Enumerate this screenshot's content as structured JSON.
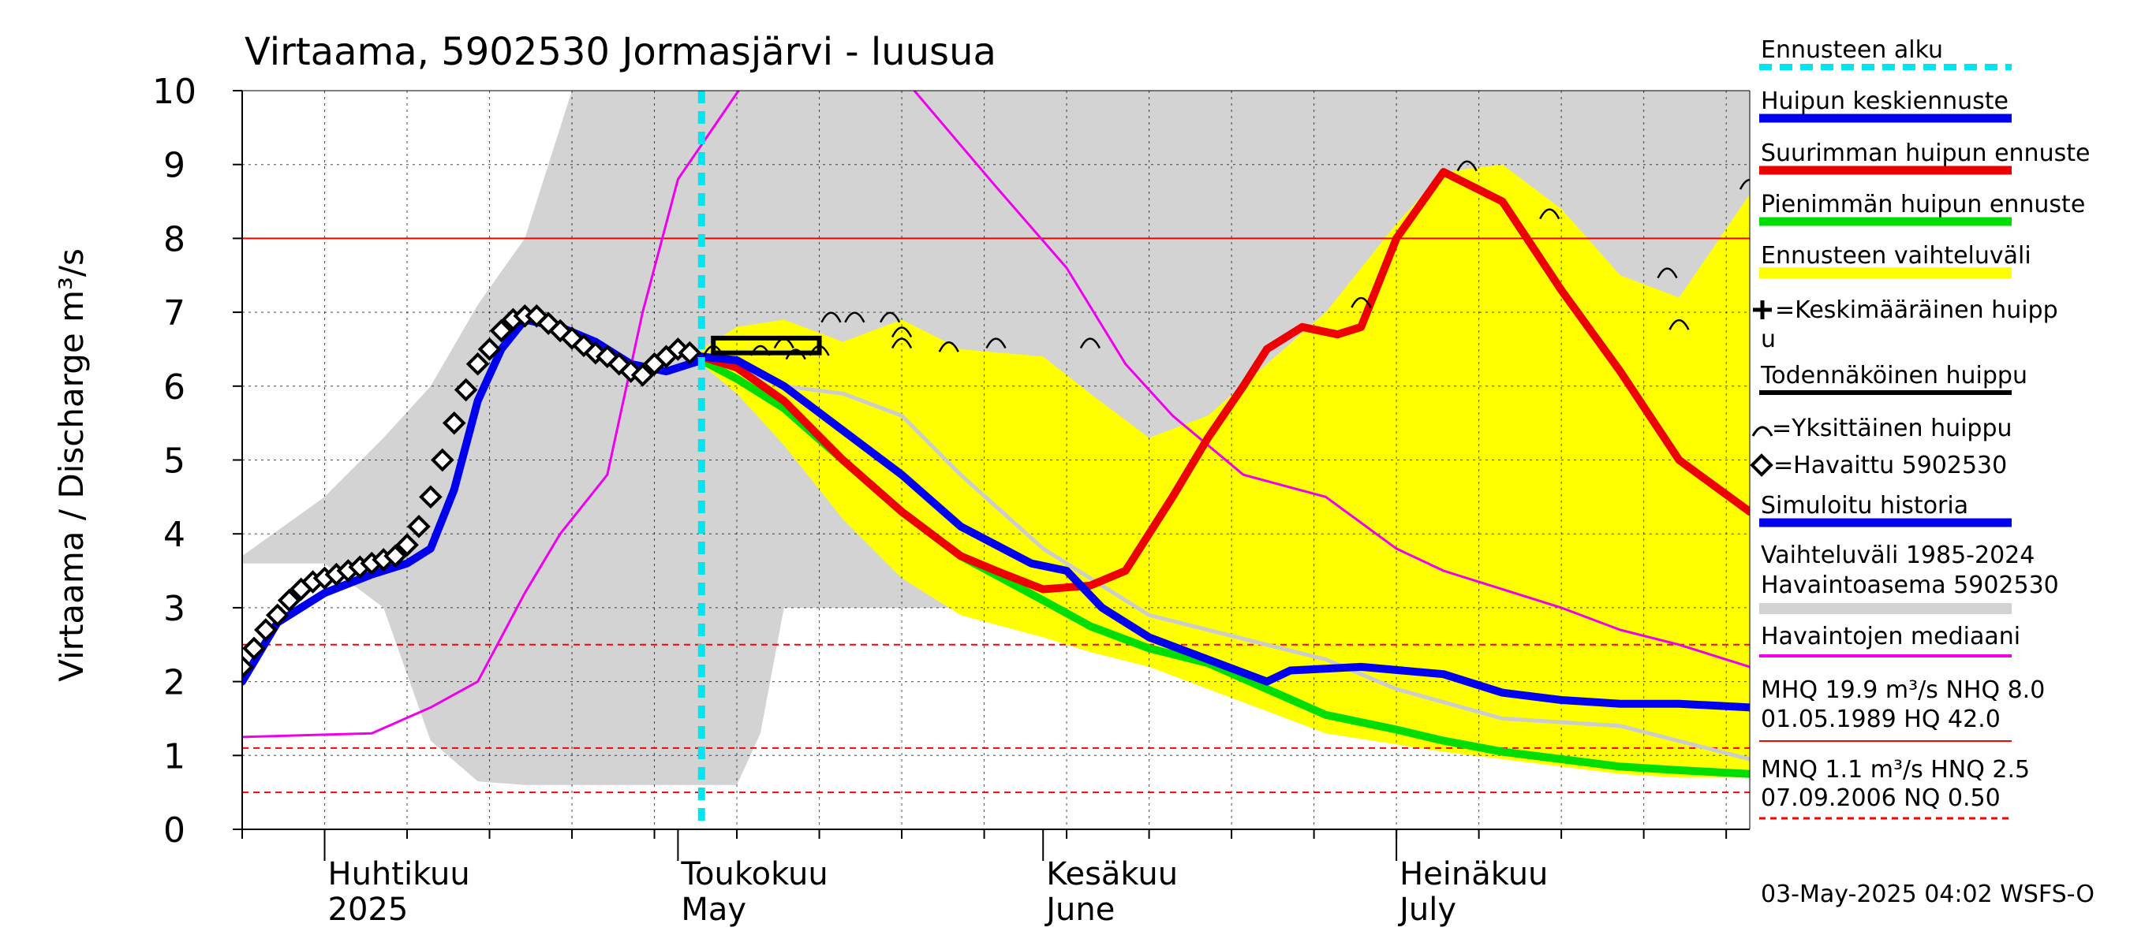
{
  "chart_data": {
    "type": "line",
    "title": "Virtaama, 5902530 Jormasjärvi - luusua",
    "ylabel": "Virtaama / Discharge    m³/s",
    "ylim": [
      0,
      10
    ],
    "yticks": [
      0,
      1,
      2,
      3,
      4,
      5,
      6,
      7,
      8,
      9,
      10
    ],
    "xlim": [
      "2025-03-25",
      "2025-07-31"
    ],
    "x_month_labels": [
      {
        "date": "2025-04-01",
        "fi": "Huhtikuu",
        "en": "2025"
      },
      {
        "date": "2025-05-01",
        "fi": "Toukokuu",
        "en": "May"
      },
      {
        "date": "2025-06-01",
        "fi": "Kesäkuu",
        "en": "June"
      },
      {
        "date": "2025-07-01",
        "fi": "Heinäkuu",
        "en": "July"
      }
    ],
    "grid": true,
    "forecast_start": "2025-05-03",
    "reference_lines": [
      {
        "name": "MHQ/NHQ",
        "value": 8.0,
        "color": "#ff0000",
        "style": "solid"
      },
      {
        "name": "HNQ",
        "value": 2.5,
        "color": "#ff0000",
        "style": "dashed"
      },
      {
        "name": "MNQ",
        "value": 1.1,
        "color": "#ff0000",
        "style": "dashed"
      },
      {
        "name": "NQ",
        "value": 0.5,
        "color": "#ff0000",
        "style": "dashed"
      }
    ],
    "hist_range": {
      "x": [
        "2025-03-25",
        "2025-04-01",
        "2025-04-06",
        "2025-04-10",
        "2025-04-14",
        "2025-04-18",
        "2025-04-22",
        "2025-04-25",
        "2025-04-27",
        "2025-05-01",
        "2025-05-03",
        "2025-05-06",
        "2025-05-08",
        "2025-05-10",
        "2025-05-15",
        "2025-05-20",
        "2025-05-25",
        "2025-06-01",
        "2025-06-10",
        "2025-06-15",
        "2025-06-20",
        "2025-06-25",
        "2025-07-01",
        "2025-07-05",
        "2025-07-10",
        "2025-07-15",
        "2025-07-20",
        "2025-07-25",
        "2025-07-31"
      ],
      "upper": [
        3.7,
        4.5,
        5.3,
        6.0,
        7.1,
        8.0,
        10,
        10,
        10,
        10,
        10,
        10,
        10,
        10,
        10,
        10,
        10,
        10,
        10,
        10,
        10,
        10,
        10,
        10,
        10,
        10,
        10,
        10,
        10
      ],
      "lower": [
        3.6,
        3.6,
        3.0,
        1.2,
        0.65,
        0.6,
        0.6,
        0.6,
        0.6,
        0.6,
        0.6,
        0.6,
        1.3,
        3.0,
        3.0,
        3.0,
        3.0,
        3.0,
        3.0,
        3.0,
        3.0,
        3.0,
        3.0,
        3.0,
        3.0,
        3.0,
        3.0,
        3.0,
        3.0
      ]
    },
    "forecast_range": {
      "x": [
        "2025-05-03",
        "2025-05-06",
        "2025-05-10",
        "2025-05-15",
        "2025-05-20",
        "2025-05-25",
        "2025-06-01",
        "2025-06-05",
        "2025-06-10",
        "2025-06-15",
        "2025-06-20",
        "2025-06-25",
        "2025-07-01",
        "2025-07-05",
        "2025-07-10",
        "2025-07-15",
        "2025-07-20",
        "2025-07-25",
        "2025-07-31"
      ],
      "upper": [
        6.5,
        6.8,
        6.9,
        6.6,
        6.9,
        6.5,
        6.4,
        5.9,
        5.3,
        5.6,
        6.3,
        7.0,
        8.2,
        8.9,
        9.0,
        8.4,
        7.5,
        7.2,
        8.6
      ],
      "lower": [
        6.3,
        5.9,
        5.2,
        4.2,
        3.4,
        2.9,
        2.6,
        2.4,
        2.2,
        1.9,
        1.6,
        1.3,
        1.15,
        1.05,
        0.95,
        0.85,
        0.75,
        0.7,
        0.7
      ]
    },
    "series": [
      {
        "name": "Huipun keskiennuste",
        "color": "#0000ee",
        "x": [
          "2025-05-03",
          "2025-05-06",
          "2025-05-10",
          "2025-05-15",
          "2025-05-20",
          "2025-05-25",
          "2025-05-31",
          "2025-06-03",
          "2025-06-06",
          "2025-06-10",
          "2025-06-15",
          "2025-06-20",
          "2025-06-22",
          "2025-06-28",
          "2025-07-05",
          "2025-07-10",
          "2025-07-15",
          "2025-07-20",
          "2025-07-25",
          "2025-07-31"
        ],
        "values": [
          6.4,
          6.35,
          6.0,
          5.4,
          4.8,
          4.1,
          3.6,
          3.5,
          3.0,
          2.6,
          2.3,
          2.0,
          2.15,
          2.2,
          2.1,
          1.85,
          1.75,
          1.7,
          1.7,
          1.65
        ]
      },
      {
        "name": "Suurimman huipun ennuste",
        "color": "#ee0000",
        "x": [
          "2025-05-03",
          "2025-05-06",
          "2025-05-10",
          "2025-05-15",
          "2025-05-20",
          "2025-05-25",
          "2025-05-28",
          "2025-06-01",
          "2025-06-05",
          "2025-06-08",
          "2025-06-12",
          "2025-06-15",
          "2025-06-18",
          "2025-06-20",
          "2025-06-23",
          "2025-06-26",
          "2025-06-28",
          "2025-07-01",
          "2025-07-05",
          "2025-07-10",
          "2025-07-15",
          "2025-07-20",
          "2025-07-25",
          "2025-07-31"
        ],
        "values": [
          6.4,
          6.25,
          5.8,
          5.0,
          4.3,
          3.7,
          3.5,
          3.25,
          3.3,
          3.5,
          4.5,
          5.3,
          6.0,
          6.5,
          6.8,
          6.7,
          6.8,
          8.0,
          8.9,
          8.5,
          7.3,
          6.2,
          5.0,
          4.3
        ]
      },
      {
        "name": "Pienimmän huipun ennuste",
        "color": "#00dd00",
        "x": [
          "2025-05-03",
          "2025-05-06",
          "2025-05-10",
          "2025-05-15",
          "2025-05-20",
          "2025-05-25",
          "2025-06-01",
          "2025-06-05",
          "2025-06-10",
          "2025-06-15",
          "2025-06-20",
          "2025-06-25",
          "2025-07-01",
          "2025-07-05",
          "2025-07-10",
          "2025-07-15",
          "2025-07-20",
          "2025-07-25",
          "2025-07-31"
        ],
        "values": [
          6.35,
          6.1,
          5.7,
          5.0,
          4.3,
          3.7,
          3.1,
          2.75,
          2.45,
          2.25,
          1.9,
          1.55,
          1.35,
          1.2,
          1.05,
          0.95,
          0.85,
          0.8,
          0.75
        ]
      },
      {
        "name": "Simuloitu historia",
        "color": "#0000ee",
        "x": [
          "2025-03-25",
          "2025-03-28",
          "2025-04-01",
          "2025-04-05",
          "2025-04-08",
          "2025-04-10",
          "2025-04-12",
          "2025-04-14",
          "2025-04-16",
          "2025-04-18",
          "2025-04-21",
          "2025-04-24",
          "2025-04-27",
          "2025-04-30",
          "2025-05-03"
        ],
        "values": [
          2.0,
          2.8,
          3.2,
          3.45,
          3.6,
          3.8,
          4.6,
          5.8,
          6.5,
          6.9,
          6.8,
          6.6,
          6.3,
          6.2,
          6.35
        ]
      },
      {
        "name": "Havaintojen mediaani",
        "color": "#ee00ee",
        "x": [
          "2025-03-25",
          "2025-04-05",
          "2025-04-10",
          "2025-04-14",
          "2025-04-18",
          "2025-04-21",
          "2025-04-25",
          "2025-04-28",
          "2025-05-01",
          "2025-05-07",
          "2025-05-20",
          "2025-05-28",
          "2025-06-03",
          "2025-06-08",
          "2025-06-12",
          "2025-06-18",
          "2025-06-25",
          "2025-07-01",
          "2025-07-05",
          "2025-07-15",
          "2025-07-20",
          "2025-07-25",
          "2025-07-31"
        ],
        "values": [
          1.25,
          1.3,
          1.65,
          2.0,
          3.2,
          4.0,
          4.8,
          7.0,
          8.8,
          10.2,
          10.2,
          8.7,
          7.6,
          6.3,
          5.6,
          4.8,
          4.5,
          3.8,
          3.5,
          3.0,
          2.7,
          2.5,
          2.2
        ]
      },
      {
        "name": "Vaihteluväli 1985-2024 median (grey)",
        "color": "#cccccc",
        "x": [
          "2025-05-03",
          "2025-05-10",
          "2025-05-15",
          "2025-05-20",
          "2025-05-25",
          "2025-06-01",
          "2025-06-10",
          "2025-06-20",
          "2025-06-25",
          "2025-07-01",
          "2025-07-10",
          "2025-07-20",
          "2025-07-31"
        ],
        "values": [
          6.4,
          6.0,
          5.9,
          5.6,
          4.8,
          3.8,
          2.9,
          2.5,
          2.3,
          1.9,
          1.5,
          1.4,
          0.95
        ]
      }
    ],
    "observed": {
      "name": "Havaittu 5902530",
      "x": [
        "2025-03-25",
        "2025-03-26",
        "2025-03-27",
        "2025-03-28",
        "2025-03-29",
        "2025-03-30",
        "2025-03-31",
        "2025-04-01",
        "2025-04-02",
        "2025-04-03",
        "2025-04-04",
        "2025-04-05",
        "2025-04-06",
        "2025-04-07",
        "2025-04-08",
        "2025-04-09",
        "2025-04-10",
        "2025-04-11",
        "2025-04-12",
        "2025-04-13",
        "2025-04-14",
        "2025-04-15",
        "2025-04-16",
        "2025-04-17",
        "2025-04-18",
        "2025-04-19",
        "2025-04-20",
        "2025-04-21",
        "2025-04-22",
        "2025-04-23",
        "2025-04-24",
        "2025-04-25",
        "2025-04-26",
        "2025-04-27",
        "2025-04-28",
        "2025-04-29",
        "2025-04-30",
        "2025-05-01",
        "2025-05-02"
      ],
      "values": [
        2.2,
        2.45,
        2.7,
        2.9,
        3.1,
        3.25,
        3.35,
        3.4,
        3.45,
        3.5,
        3.55,
        3.6,
        3.65,
        3.7,
        3.85,
        4.1,
        4.5,
        5.0,
        5.5,
        5.95,
        6.3,
        6.5,
        6.75,
        6.9,
        6.95,
        6.95,
        6.85,
        6.75,
        6.65,
        6.55,
        6.45,
        6.4,
        6.3,
        6.2,
        6.15,
        6.3,
        6.4,
        6.5,
        6.45
      ]
    },
    "likely_peak": {
      "name": "Todennäköinen huippu",
      "x0": "2025-05-04",
      "x1": "2025-05-13",
      "y0": 6.45,
      "y1": 6.65
    },
    "single_peaks": [
      {
        "x": "2025-05-04",
        "y": 6.5
      },
      {
        "x": "2025-05-08",
        "y": 6.5
      },
      {
        "x": "2025-05-10",
        "y": 6.6
      },
      {
        "x": "2025-05-11",
        "y": 6.45
      },
      {
        "x": "2025-05-13",
        "y": 6.5
      },
      {
        "x": "2025-05-14",
        "y": 6.95
      },
      {
        "x": "2025-05-16",
        "y": 6.95
      },
      {
        "x": "2025-05-19",
        "y": 6.95
      },
      {
        "x": "2025-05-20",
        "y": 6.75
      },
      {
        "x": "2025-05-20",
        "y": 6.6
      },
      {
        "x": "2025-05-24",
        "y": 6.55
      },
      {
        "x": "2025-05-28",
        "y": 6.6
      },
      {
        "x": "2025-06-05",
        "y": 6.6
      },
      {
        "x": "2025-06-28",
        "y": 7.15
      },
      {
        "x": "2025-07-07",
        "y": 9.0
      },
      {
        "x": "2025-07-14",
        "y": 8.35
      },
      {
        "x": "2025-07-24",
        "y": 7.55
      },
      {
        "x": "2025-07-25",
        "y": 6.85
      },
      {
        "x": "2025-07-31",
        "y": 8.75
      }
    ],
    "legend": {
      "placement": "right",
      "forecast_start": "Ennusteen alku",
      "mean_peak": "Huipun keskiennuste",
      "max_peak": "Suurimman huipun ennuste",
      "min_peak": "Pienimmän huipun ennuste",
      "range": "Ennusteen vaihteluväli",
      "avg_peak_a": "=Keskimääräinen huipp",
      "avg_peak_b": "u",
      "likely_peak": "Todennäköinen huippu",
      "single_peak": "=Yksittäinen huippu",
      "observed": "=Havaittu 5902530",
      "simulated": "Simuloitu historia",
      "hist_a": "Vaihteluväli 1985-2024",
      "hist_b": " Havaintoasema 5902530",
      "median": "Havaintojen mediaani",
      "stats1_a": "MHQ 19.9 m³/s NHQ  8.0",
      "stats1_b": "01.05.1989 HQ 42.0",
      "stats2_a": "MNQ  1.1 m³/s HNQ  2.5",
      "stats2_b": "07.09.2006 NQ 0.50"
    },
    "footer": "03-May-2025 04:02 WSFS-O",
    "colors": {
      "hist_range": "#d3d3d3",
      "forecast_range": "#ffff00",
      "forecast_start": "#00e5ee",
      "reference": "#ff0000"
    }
  }
}
